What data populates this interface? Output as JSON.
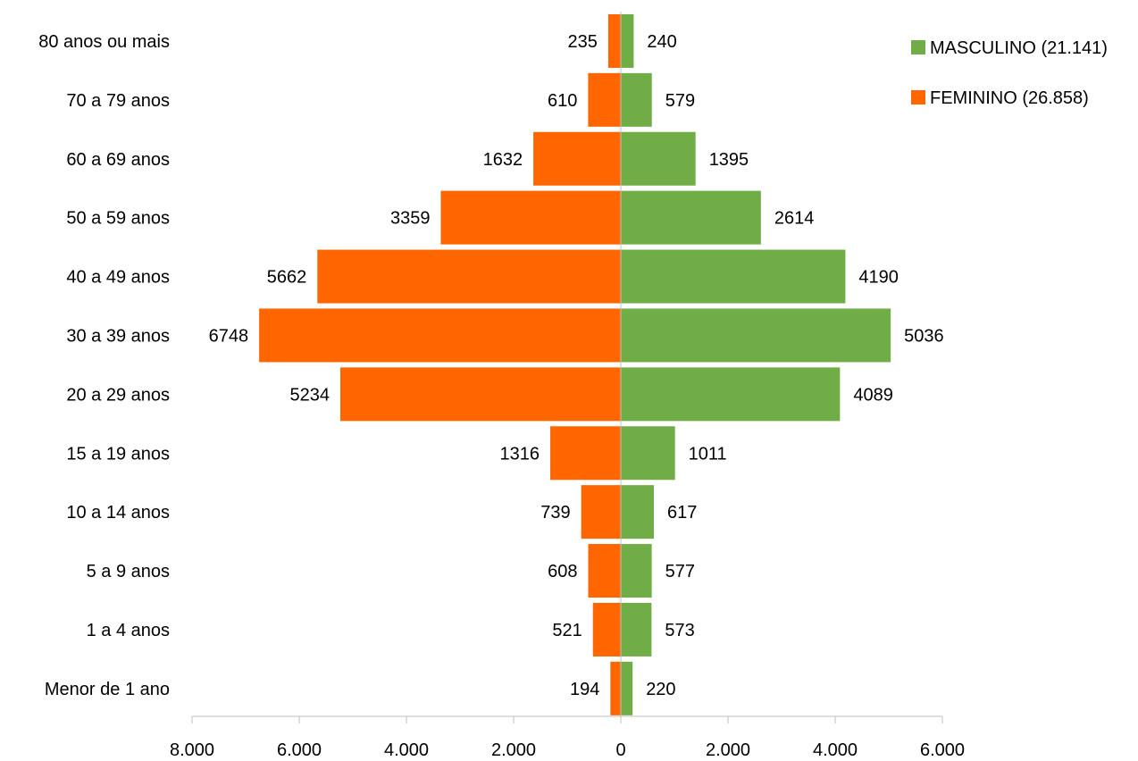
{
  "chart_data": {
    "type": "bar",
    "orientation": "horizontal",
    "layout": "population-pyramid",
    "title": "",
    "xlabel": "",
    "ylabel": "",
    "categories": [
      "80 anos ou mais",
      "70 a 79 anos",
      "60 a 69 anos",
      "50 a 59 anos",
      "40 a 49 anos",
      "30 a 39 anos",
      "20 a 29 anos",
      "15 a 19 anos",
      "10 a 14 anos",
      "5 a 9 anos",
      "1 a 4 anos",
      "Menor de 1 ano"
    ],
    "series": [
      {
        "name": "MASCULINO (21.141)",
        "side": "right",
        "color": "#70ad47",
        "values": [
          240,
          579,
          1395,
          2614,
          4190,
          5036,
          4089,
          1011,
          617,
          577,
          573,
          220
        ]
      },
      {
        "name": "FEMININO (26.858)",
        "side": "left",
        "color": "#ff6600",
        "values": [
          235,
          610,
          1632,
          3359,
          5662,
          6748,
          5234,
          1316,
          739,
          608,
          521,
          194
        ]
      }
    ],
    "xlim": [
      -8000,
      6000
    ],
    "xticks": [
      -8000,
      -6000,
      -4000,
      -2000,
      0,
      2000,
      4000,
      6000
    ],
    "xtick_labels": [
      "8.000",
      "6.000",
      "4.000",
      "2.000",
      "0",
      "2.000",
      "4.000",
      "6.000"
    ],
    "legend_position": "top-right",
    "grid": false
  }
}
